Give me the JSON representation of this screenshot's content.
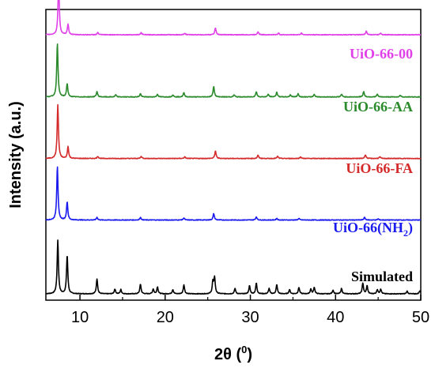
{
  "chart_data": {
    "type": "line",
    "xlabel": "2θ (⁰)",
    "xlabel_prefix": "2θ (",
    "xlabel_sup": "0",
    "xlabel_suffix": ")",
    "ylabel": "Intensity (a.u.)",
    "xlim": [
      6,
      50
    ],
    "x_ticks": [
      10,
      20,
      30,
      40,
      50
    ],
    "y_ticks": [],
    "grid": false,
    "legend": "none",
    "series": [
      {
        "name": "Simulated",
        "label_main": "Simulated",
        "label_sub": "",
        "label_tail": "",
        "color": "#000000",
        "baseline_offset": 0.0,
        "peaks": [
          [
            7.4,
            1.0
          ],
          [
            8.5,
            0.72
          ],
          [
            12.0,
            0.28
          ],
          [
            14.1,
            0.09
          ],
          [
            14.8,
            0.08
          ],
          [
            17.1,
            0.18
          ],
          [
            18.6,
            0.09
          ],
          [
            19.1,
            0.13
          ],
          [
            20.9,
            0.08
          ],
          [
            22.2,
            0.17
          ],
          [
            25.6,
            0.22
          ],
          [
            25.8,
            0.3
          ],
          [
            28.2,
            0.1
          ],
          [
            29.9,
            0.15
          ],
          [
            30.7,
            0.2
          ],
          [
            32.2,
            0.1
          ],
          [
            33.1,
            0.17
          ],
          [
            34.6,
            0.08
          ],
          [
            35.7,
            0.12
          ],
          [
            37.1,
            0.09
          ],
          [
            37.5,
            0.12
          ],
          [
            39.7,
            0.07
          ],
          [
            40.7,
            0.1
          ],
          [
            43.2,
            0.2
          ],
          [
            43.7,
            0.15
          ],
          [
            44.9,
            0.08
          ],
          [
            45.3,
            0.09
          ],
          [
            48.4,
            0.05
          ],
          [
            49.9,
            0.06
          ]
        ]
      },
      {
        "name": "UiO-66(NH2)",
        "label_main": "UiO-66(NH",
        "label_sub": "2",
        "label_tail": ")",
        "color": "#1a1aee",
        "baseline_offset": 1.14,
        "peaks": [
          [
            7.35,
            1.0
          ],
          [
            8.5,
            0.34
          ],
          [
            12.0,
            0.05
          ],
          [
            17.1,
            0.05
          ],
          [
            22.2,
            0.04
          ],
          [
            25.7,
            0.12
          ],
          [
            30.7,
            0.06
          ],
          [
            33.1,
            0.03
          ],
          [
            35.7,
            0.03
          ],
          [
            43.4,
            0.05
          ],
          [
            45.0,
            0.02
          ]
        ]
      },
      {
        "name": "UiO-66-FA",
        "label_main": "UiO-66-FA",
        "label_sub": "",
        "label_tail": "",
        "color": "#d42a2a",
        "baseline_offset": 2.09,
        "peaks": [
          [
            7.4,
            1.0
          ],
          [
            8.6,
            0.22
          ],
          [
            12.1,
            0.04
          ],
          [
            17.2,
            0.04
          ],
          [
            22.3,
            0.03
          ],
          [
            25.9,
            0.14
          ],
          [
            30.9,
            0.06
          ],
          [
            33.2,
            0.04
          ],
          [
            35.9,
            0.03
          ],
          [
            43.5,
            0.07
          ],
          [
            45.2,
            0.03
          ]
        ]
      },
      {
        "name": "UiO-66-AA",
        "label_main": "UiO-66-AA",
        "label_sub": "",
        "label_tail": "",
        "color": "#2b8a2b",
        "baseline_offset": 3.04,
        "peaks": [
          [
            7.35,
            1.0
          ],
          [
            8.5,
            0.25
          ],
          [
            12.0,
            0.1
          ],
          [
            14.2,
            0.04
          ],
          [
            17.1,
            0.06
          ],
          [
            19.1,
            0.05
          ],
          [
            20.9,
            0.04
          ],
          [
            22.2,
            0.08
          ],
          [
            25.7,
            0.2
          ],
          [
            28.1,
            0.04
          ],
          [
            30.7,
            0.1
          ],
          [
            32.1,
            0.05
          ],
          [
            33.1,
            0.09
          ],
          [
            34.7,
            0.04
          ],
          [
            35.6,
            0.06
          ],
          [
            37.5,
            0.05
          ],
          [
            40.7,
            0.05
          ],
          [
            43.3,
            0.1
          ],
          [
            44.9,
            0.05
          ],
          [
            47.6,
            0.03
          ]
        ]
      },
      {
        "name": "UiO-66-00",
        "label_main": "UiO-66-00",
        "label_sub": "",
        "label_tail": "",
        "color": "#e040e8",
        "baseline_offset": 4.0,
        "peaks": [
          [
            7.5,
            1.0
          ],
          [
            8.6,
            0.2
          ],
          [
            12.1,
            0.04
          ],
          [
            17.2,
            0.04
          ],
          [
            22.3,
            0.03
          ],
          [
            25.9,
            0.13
          ],
          [
            30.9,
            0.06
          ],
          [
            33.3,
            0.03
          ],
          [
            36.0,
            0.03
          ],
          [
            43.6,
            0.07
          ],
          [
            45.3,
            0.03
          ]
        ]
      }
    ]
  }
}
